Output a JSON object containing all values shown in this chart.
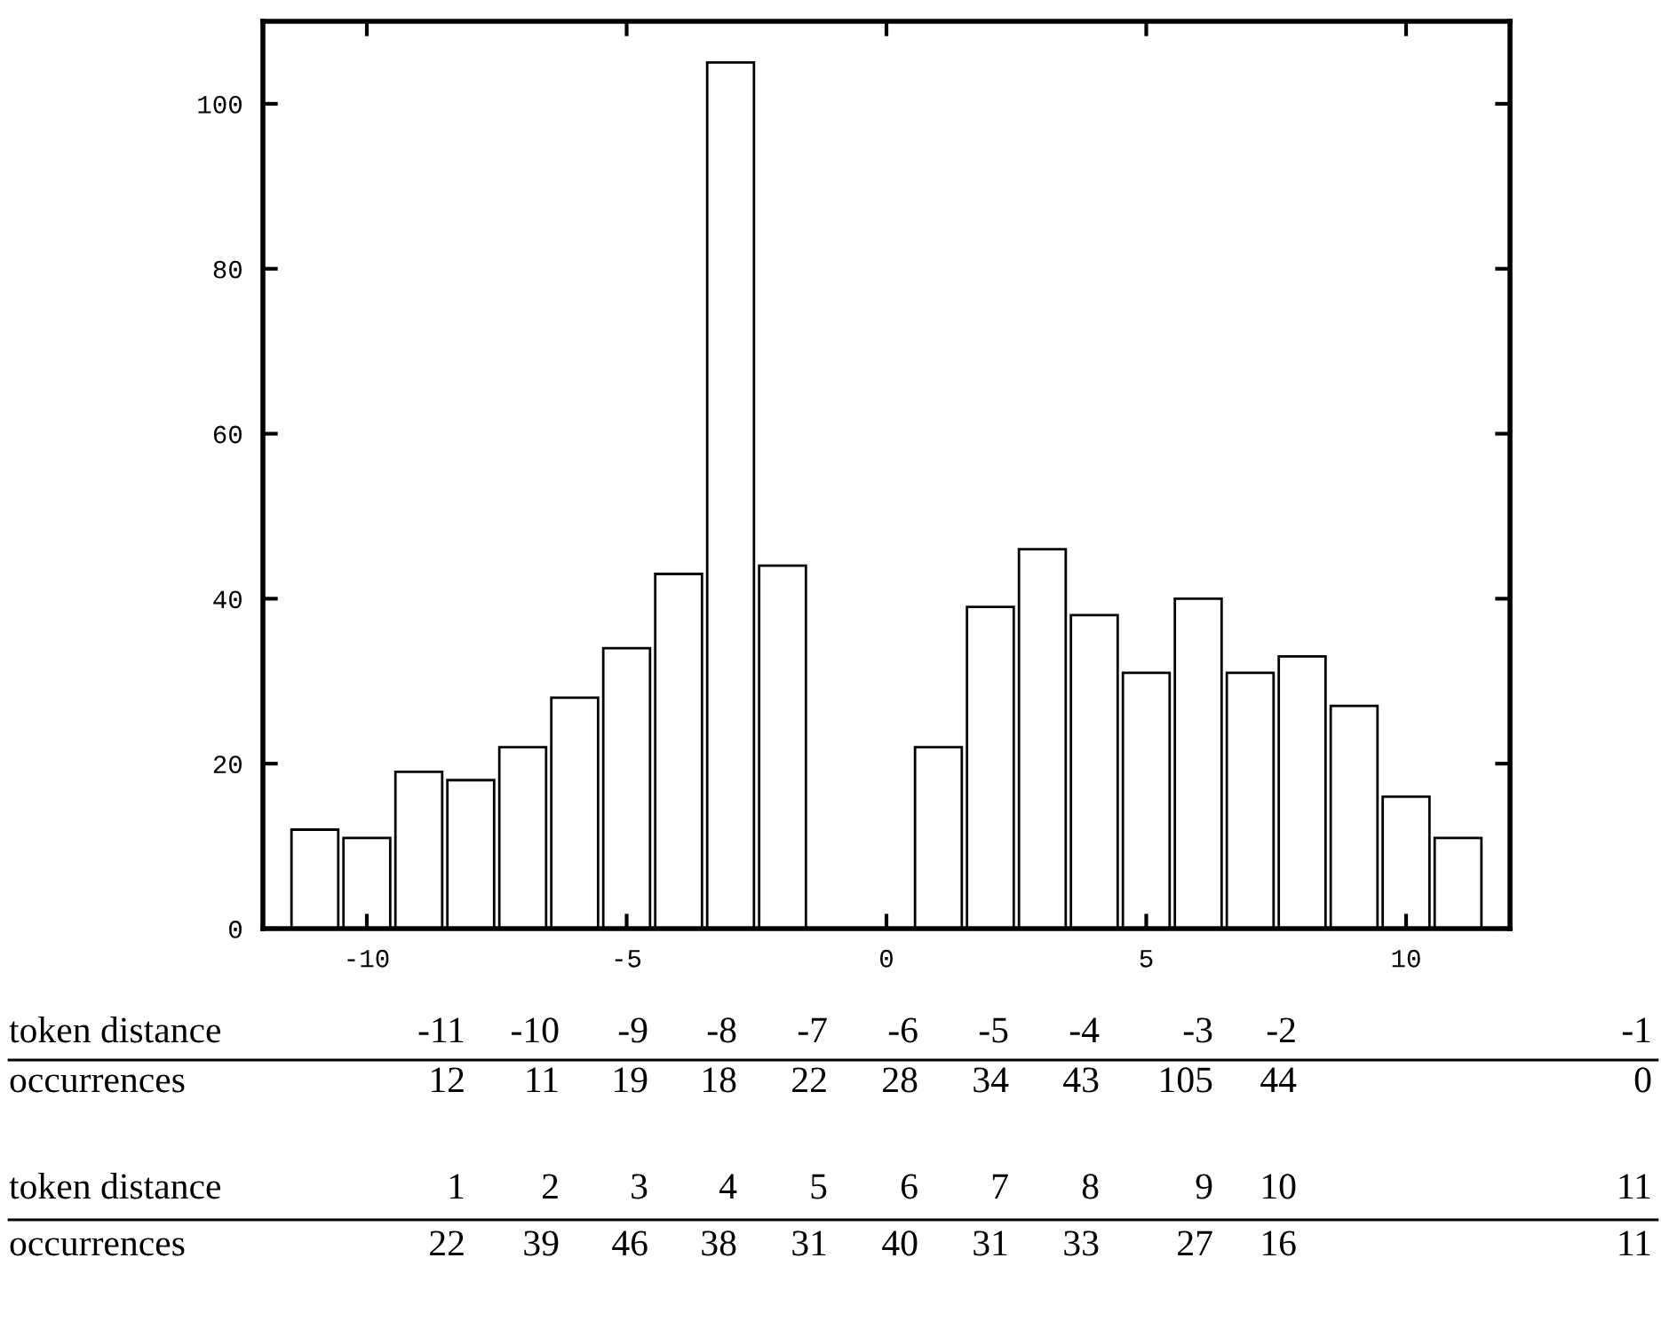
{
  "chart_data": {
    "type": "bar",
    "x": [
      -11,
      -10,
      -9,
      -8,
      -7,
      -6,
      -5,
      -4,
      -3,
      -2,
      -1,
      1,
      2,
      3,
      4,
      5,
      6,
      7,
      8,
      9,
      10,
      11
    ],
    "values": [
      12,
      11,
      19,
      18,
      22,
      28,
      34,
      43,
      105,
      44,
      0,
      22,
      39,
      46,
      38,
      31,
      40,
      31,
      33,
      27,
      16,
      11
    ],
    "color": "#ffffff",
    "xlim": [
      -12,
      12
    ],
    "xticks": [
      -10,
      -5,
      0,
      5,
      10
    ],
    "ylim": [
      0,
      110
    ],
    "yticks": [
      0,
      20,
      40,
      60,
      80,
      100
    ],
    "grid": false,
    "legend": false,
    "annotations": [
      "token distance",
      "-11",
      "-10",
      "-9",
      "-8",
      "-7",
      "-6",
      "-5",
      "-4",
      "-3",
      "-2",
      "-1",
      "occurrences",
      "12",
      "11",
      "19",
      "18",
      "22",
      "28",
      "34",
      "43",
      "105",
      "44",
      "0",
      "token distance",
      "1",
      "2",
      "3",
      "4",
      "5",
      "6",
      "7",
      "8",
      "9",
      "10",
      "11",
      "occurrences",
      "22",
      "39",
      "46",
      "38",
      "31",
      "40",
      "31",
      "33",
      "27",
      "16",
      "11"
    ]
  }
}
